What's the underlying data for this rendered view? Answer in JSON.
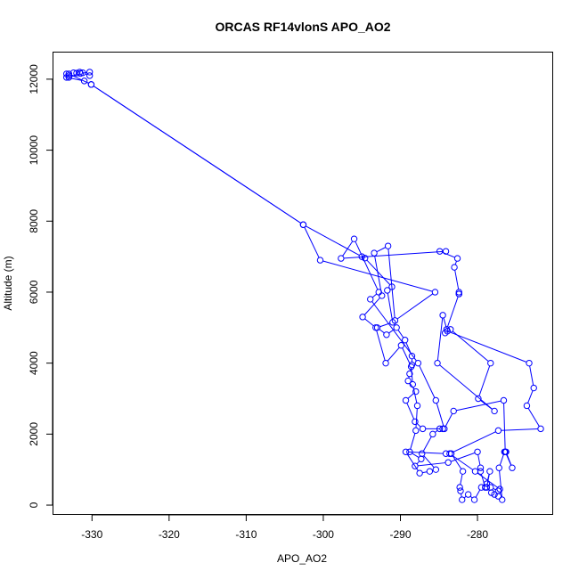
{
  "chart_data": {
    "type": "line",
    "title": "ORCAS RF14vlonS APO_AO2",
    "xlabel": "APO_AO2",
    "ylabel": "Altitude (m)",
    "xlim": [
      -335,
      -270.3
    ],
    "ylim": [
      -250,
      12750
    ],
    "xticks": [
      -330,
      -320,
      -310,
      -300,
      -290,
      -280
    ],
    "yticks": [
      0,
      2000,
      4000,
      6000,
      8000,
      10000,
      12000
    ],
    "xtick_labels": [
      "-330",
      "-320",
      "-310",
      "-300",
      "-290",
      "-280"
    ],
    "ytick_labels": [
      "0",
      "2000",
      "4000",
      "6000",
      "8000",
      "10000",
      "12000"
    ],
    "grid": false,
    "marker": "open-circle",
    "line_color": "#0000ff",
    "series": [
      {
        "points": [
          [
            -333.3,
            12150
          ],
          [
            -333.0,
            12100
          ],
          [
            -332.4,
            12180
          ],
          [
            -332.0,
            12170
          ],
          [
            -331.6,
            12200
          ],
          [
            -331.2,
            12180
          ],
          [
            -330.3,
            12100
          ],
          [
            -330.3,
            12200
          ],
          [
            -331.5,
            12160
          ],
          [
            -333.0,
            12050
          ],
          [
            -333.3,
            12050
          ],
          [
            -331.0,
            11950
          ],
          [
            -330.1,
            11850
          ],
          [
            -302.6,
            7900
          ],
          [
            -295.0,
            7000
          ],
          [
            -294.6,
            6960
          ],
          [
            -291.1,
            6150
          ],
          [
            -291.7,
            6050
          ],
          [
            -291.0,
            5150
          ],
          [
            -293.0,
            5000
          ],
          [
            -291.8,
            4800
          ],
          [
            -290.5,
            5000
          ],
          [
            -289.4,
            4650
          ],
          [
            -288.5,
            4200
          ],
          [
            -288.5,
            3950
          ],
          [
            -288.8,
            3700
          ],
          [
            -289.0,
            3500
          ],
          [
            -288.0,
            3200
          ],
          [
            -289.3,
            2950
          ],
          [
            -288.1,
            2350
          ],
          [
            -287.1,
            2150
          ],
          [
            -284.5,
            2150
          ],
          [
            -284.9,
            2150
          ],
          [
            -285.8,
            2000
          ],
          [
            -287.2,
            1450
          ],
          [
            -285.4,
            1000
          ],
          [
            -286.2,
            950
          ],
          [
            -287.5,
            900
          ],
          [
            -289.3,
            1500
          ],
          [
            -284.1,
            1450
          ],
          [
            -283.4,
            1450
          ],
          [
            -281.9,
            950
          ],
          [
            -282.3,
            500
          ],
          [
            -282.2,
            400
          ],
          [
            -282.0,
            150
          ],
          [
            -281.2,
            300
          ],
          [
            -280.4,
            150
          ],
          [
            -279.5,
            500
          ],
          [
            -278.8,
            600
          ],
          [
            -278.4,
            950
          ],
          [
            -278.8,
            500
          ],
          [
            -278.2,
            350
          ],
          [
            -277.8,
            300
          ],
          [
            -277.3,
            250
          ],
          [
            -276.8,
            150
          ],
          [
            -277.2,
            1050
          ],
          [
            -276.5,
            1500
          ],
          [
            -276.3,
            1500
          ],
          [
            -275.5,
            1050
          ],
          [
            -276.4,
            1500
          ],
          [
            -276.6,
            2950
          ],
          [
            -283.1,
            2650
          ],
          [
            -284.3,
            2150
          ],
          [
            -285.4,
            2950
          ],
          [
            -287.7,
            4000
          ],
          [
            -293.9,
            5800
          ],
          [
            -292.8,
            6000
          ],
          [
            -296.0,
            7500
          ],
          [
            -297.7,
            6950
          ],
          [
            -284.1,
            7150
          ],
          [
            -284.9,
            7150
          ],
          [
            -282.6,
            6950
          ],
          [
            -283.0,
            6700
          ],
          [
            -282.4,
            6000
          ],
          [
            -282.4,
            5950
          ],
          [
            -282.4,
            5950
          ],
          [
            -284.0,
            4950
          ],
          [
            -284.2,
            4850
          ],
          [
            -283.5,
            4950
          ],
          [
            -278.3,
            4000
          ],
          [
            -279.9,
            3000
          ],
          [
            -277.8,
            2650
          ],
          [
            -285.2,
            4000
          ],
          [
            -284.5,
            5350
          ],
          [
            -283.9,
            4900
          ],
          [
            -273.3,
            4000
          ],
          [
            -272.7,
            3300
          ],
          [
            -273.6,
            2800
          ],
          [
            -271.8,
            2150
          ],
          [
            -277.3,
            2100
          ],
          [
            -283.6,
            1450
          ],
          [
            -280.3,
            950
          ],
          [
            -277.1,
            450
          ],
          [
            -277.3,
            400
          ],
          [
            -278.3,
            500
          ],
          [
            -279.0,
            500
          ],
          [
            -279.6,
            950
          ],
          [
            -279.6,
            1050
          ],
          [
            -280.0,
            1500
          ],
          [
            -283.8,
            1200
          ],
          [
            -288.1,
            1100
          ],
          [
            -287.3,
            1300
          ],
          [
            -288.8,
            1500
          ],
          [
            -288.0,
            2100
          ],
          [
            -287.8,
            2800
          ],
          [
            -288.4,
            3400
          ],
          [
            -288.6,
            3900
          ],
          [
            -289.9,
            4500
          ],
          [
            -291.9,
            4000
          ],
          [
            -293.2,
            5000
          ],
          [
            -294.9,
            5300
          ],
          [
            -292.4,
            5900
          ],
          [
            -293.4,
            7100
          ],
          [
            -291.6,
            7300
          ],
          [
            -290.7,
            5200
          ],
          [
            -285.5,
            6000
          ],
          [
            -300.4,
            6900
          ],
          [
            -302.6,
            7900
          ],
          [
            -330.1,
            11850
          ],
          [
            -333.0,
            12150
          ]
        ]
      }
    ]
  }
}
